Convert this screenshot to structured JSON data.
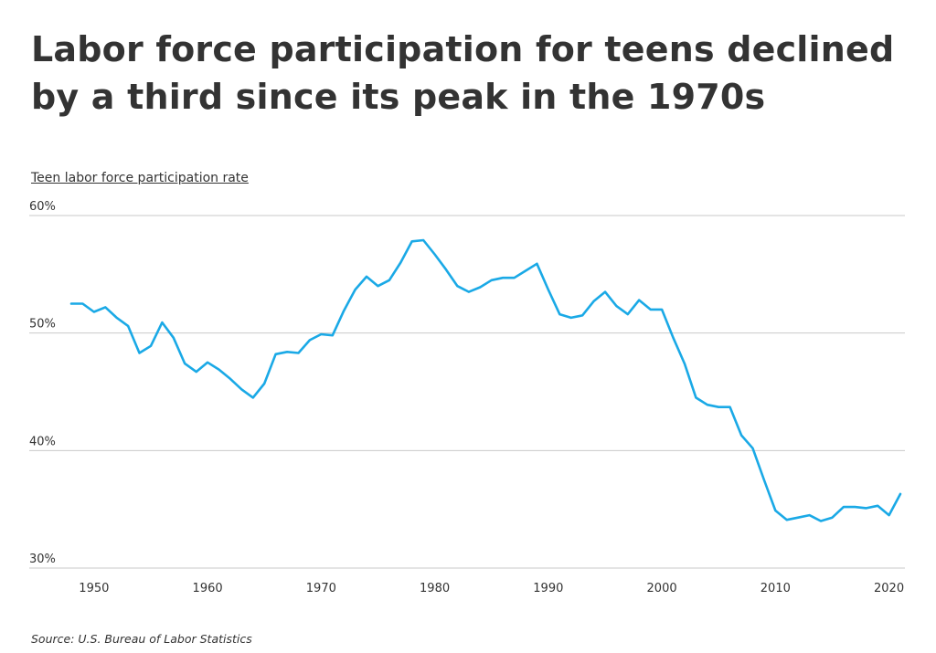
{
  "title": "Labor force participation for teens declined by a third since its peak in the 1970s",
  "source": "Source:  U.S. Bureau of Labor Statistics",
  "chart_data": {
    "type": "line",
    "title": "Labor force participation for teens declined by a third since its peak in the 1970s",
    "ylabel": "Teen labor force participation rate",
    "xlabel": "",
    "xlim": [
      1948,
      2021
    ],
    "ylim": [
      30,
      60
    ],
    "y_ticks": [
      60,
      50,
      40,
      30
    ],
    "y_tick_labels": [
      "60%",
      "50%",
      "40%",
      "30%"
    ],
    "x_ticks": [
      1950,
      1960,
      1970,
      1980,
      1990,
      2000,
      2010,
      2020
    ],
    "x_tick_labels": [
      "1950",
      "1960",
      "1970",
      "1980",
      "1990",
      "2000",
      "2010",
      "2020"
    ],
    "grid": "horizontal",
    "line_color": "#1aa9e6",
    "x": [
      1948,
      1949,
      1950,
      1951,
      1952,
      1953,
      1954,
      1955,
      1956,
      1957,
      1958,
      1959,
      1960,
      1961,
      1962,
      1963,
      1964,
      1965,
      1966,
      1967,
      1968,
      1969,
      1970,
      1971,
      1972,
      1973,
      1974,
      1975,
      1976,
      1977,
      1978,
      1979,
      1980,
      1981,
      1982,
      1983,
      1984,
      1985,
      1986,
      1987,
      1988,
      1989,
      1990,
      1991,
      1992,
      1993,
      1994,
      1995,
      1996,
      1997,
      1998,
      1999,
      2000,
      2001,
      2002,
      2003,
      2004,
      2005,
      2006,
      2007,
      2008,
      2009,
      2010,
      2011,
      2012,
      2013,
      2014,
      2015,
      2016,
      2017,
      2018,
      2019,
      2020,
      2021
    ],
    "values": [
      52.5,
      52.5,
      51.8,
      52.2,
      51.3,
      50.6,
      48.3,
      48.9,
      50.9,
      49.6,
      47.4,
      46.7,
      47.5,
      46.9,
      46.1,
      45.2,
      44.5,
      45.7,
      48.2,
      48.4,
      48.3,
      49.4,
      49.9,
      49.8,
      51.9,
      53.7,
      54.8,
      54.0,
      54.5,
      56.0,
      57.8,
      57.9,
      56.7,
      55.4,
      54.0,
      53.5,
      53.9,
      54.5,
      54.7,
      54.7,
      55.3,
      55.9,
      53.7,
      51.6,
      51.3,
      51.5,
      52.7,
      53.5,
      52.3,
      51.6,
      52.8,
      52.0,
      52.0,
      49.6,
      47.4,
      44.5,
      43.9,
      43.7,
      43.7,
      41.3,
      40.2,
      37.5,
      34.9,
      34.1,
      34.3,
      34.5,
      34.0,
      34.3,
      35.2,
      35.2,
      35.1,
      35.3,
      34.5,
      36.3
    ]
  }
}
